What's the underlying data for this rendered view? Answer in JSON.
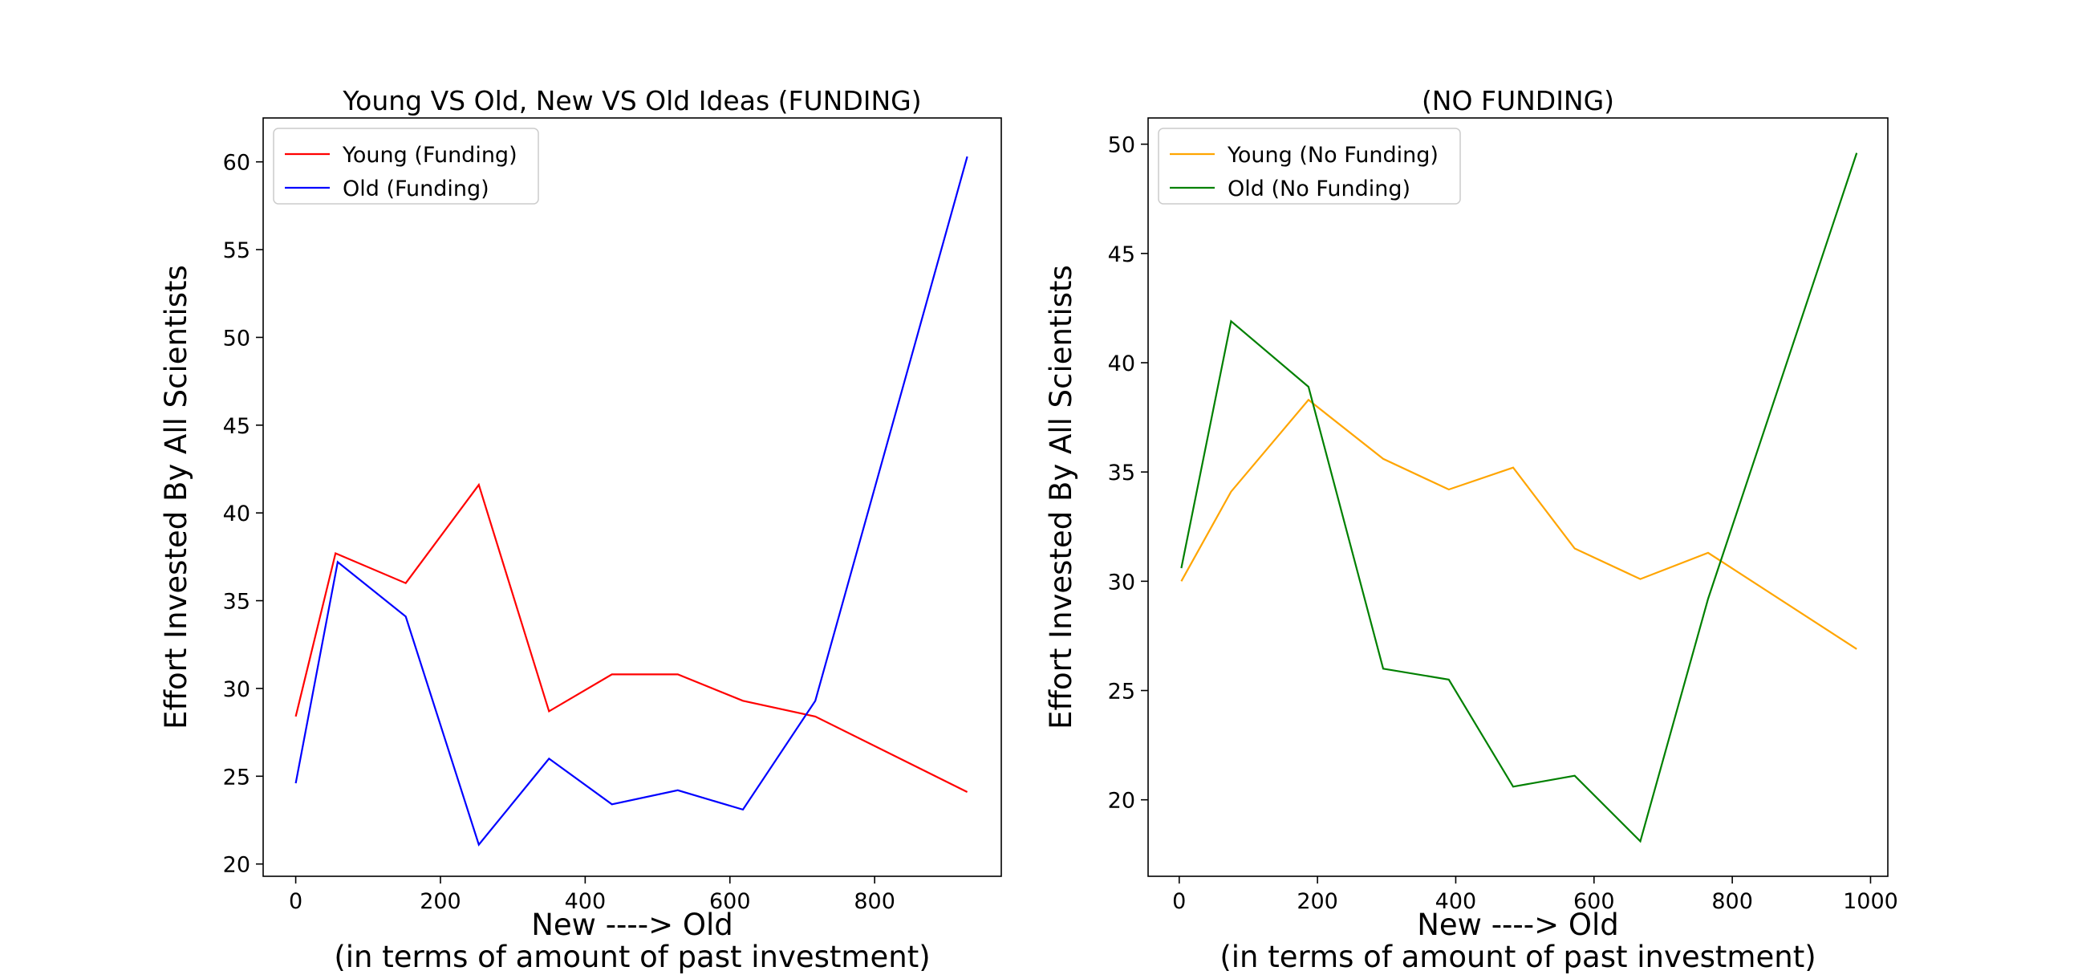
{
  "chart_data": [
    {
      "type": "line",
      "title": "Young VS Old, New VS Old Ideas (FUNDING)",
      "xlabel_line1": "New ----> Old",
      "xlabel_line2": "(in terms of amount of past investment)",
      "ylabel": "Effort Invested By All Scientists",
      "xlim": [
        -45,
        975
      ],
      "ylim": [
        19.3,
        62.5
      ],
      "xticks": [
        0,
        200,
        400,
        600,
        800
      ],
      "yticks": [
        20,
        25,
        30,
        35,
        40,
        45,
        50,
        55,
        60
      ],
      "grid": false,
      "legend_position": "upper left",
      "series": [
        {
          "name": "Young (Funding)",
          "color": "#ff0000",
          "x": [
            0,
            55,
            152,
            253,
            350,
            437,
            528,
            618,
            718,
            928
          ],
          "y": [
            28.4,
            37.7,
            36.0,
            41.6,
            28.7,
            30.8,
            30.8,
            29.3,
            28.4,
            24.1
          ]
        },
        {
          "name": "Old (Funding)",
          "color": "#0000ff",
          "x": [
            0,
            58,
            152,
            253,
            350,
            437,
            528,
            618,
            718,
            928
          ],
          "y": [
            24.6,
            37.2,
            34.1,
            21.1,
            26.0,
            23.4,
            24.2,
            23.1,
            29.3,
            60.3
          ]
        }
      ]
    },
    {
      "type": "line",
      "title": "(NO FUNDING)",
      "xlabel_line1": "New ----> Old",
      "xlabel_line2": "(in terms of amount of past investment)",
      "ylabel": "Effort Invested By All Scientists",
      "xlim": [
        -45,
        1025
      ],
      "ylim": [
        16.5,
        51.2
      ],
      "xticks": [
        0,
        200,
        400,
        600,
        800,
        1000
      ],
      "yticks": [
        20,
        25,
        30,
        35,
        40,
        45,
        50
      ],
      "grid": false,
      "legend_position": "upper left",
      "series": [
        {
          "name": "Young (No Funding)",
          "color": "#ffa500",
          "x": [
            3,
            75,
            187,
            295,
            390,
            483,
            572,
            667,
            765,
            980
          ],
          "y": [
            30.0,
            34.1,
            38.3,
            35.6,
            34.2,
            35.2,
            31.5,
            30.1,
            31.3,
            26.9
          ]
        },
        {
          "name": "Old (No Funding)",
          "color": "#008000",
          "x": [
            3,
            75,
            187,
            295,
            390,
            483,
            572,
            667,
            765,
            980
          ],
          "y": [
            30.6,
            41.9,
            38.9,
            26.0,
            25.5,
            20.6,
            21.1,
            18.1,
            29.2,
            49.6
          ]
        }
      ]
    }
  ]
}
